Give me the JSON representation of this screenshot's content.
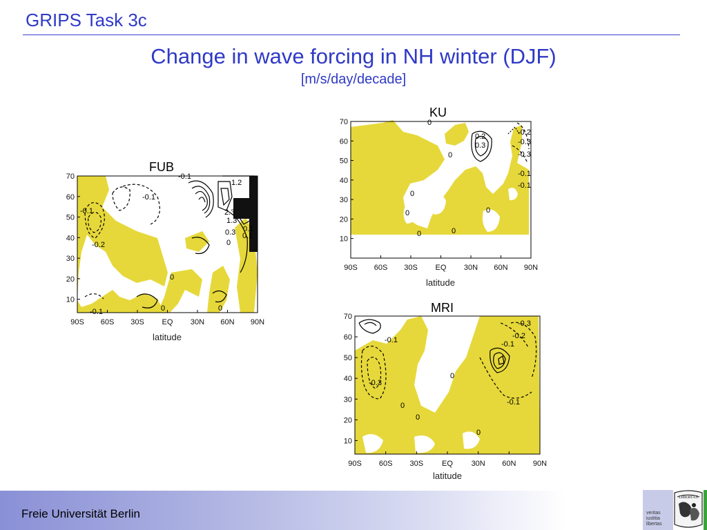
{
  "header": {
    "title": "GRIPS Task 3c"
  },
  "main": {
    "title": "Change in wave forcing in NH winter (DJF)",
    "units": "[m/s/day/decade]"
  },
  "panels": [
    {
      "id": "fub",
      "label": "FUB",
      "y_ticks": [
        "70",
        "60",
        "50",
        "40",
        "30",
        "20",
        "10"
      ],
      "x_ticks": [
        "90S",
        "60S",
        "30S",
        "EQ",
        "30N",
        "60N",
        "90N"
      ],
      "x_axis_label": "latitude",
      "contour_labels": [
        "-0.1",
        "-0.1",
        "-0.1",
        "-0.2",
        "-0.1",
        "0",
        "0",
        "0",
        "0",
        "0.1",
        "1.2",
        "2.3",
        "1.3",
        "0.3",
        "0.1"
      ]
    },
    {
      "id": "ku",
      "label": "KU",
      "y_ticks": [
        "70",
        "60",
        "50",
        "40",
        "30",
        "20",
        "10"
      ],
      "x_ticks": [
        "90S",
        "60S",
        "30S",
        "EQ",
        "30N",
        "60N",
        "90N"
      ],
      "x_axis_label": "latitude",
      "contour_labels": [
        "0.2",
        "0.3",
        "0",
        "0",
        "0",
        "0",
        "0",
        "0",
        "-0.2",
        "-0.3",
        "-0.3",
        "-0.1",
        "-0.1",
        "0"
      ]
    },
    {
      "id": "mri",
      "label": "MRI",
      "y_ticks": [
        "70",
        "60",
        "50",
        "40",
        "30",
        "20",
        "10"
      ],
      "x_ticks": [
        "90S",
        "60S",
        "30S",
        "EQ",
        "30N",
        "60N",
        "90N"
      ],
      "x_axis_label": "latitude",
      "contour_labels": [
        "-0.1",
        "-0.3",
        "0",
        "0",
        "0",
        "-0.3",
        "-0.2",
        "-0.1",
        "-0.1",
        "0"
      ]
    }
  ],
  "footer": {
    "text": "Freie Universität Berlin"
  },
  "logo": {
    "motto_1": "veritas",
    "motto_2": "iustitia",
    "motto_3": "libertas",
    "seal_text": "LIBERTAS"
  },
  "colors": {
    "accent": "#2f39c6",
    "fill": "#e6d83a"
  }
}
